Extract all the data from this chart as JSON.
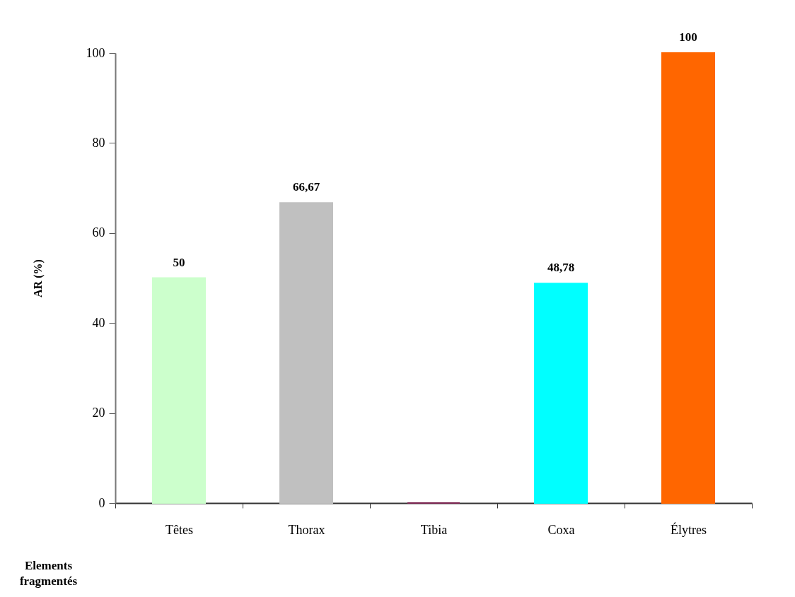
{
  "chart_data": {
    "type": "bar",
    "ylabel": "AR (%)",
    "xlabel": "Elements fragmentés",
    "categories": [
      "Têtes",
      "Thorax",
      "Tibia",
      "Coxa",
      "Élytres"
    ],
    "values": [
      50,
      66.67,
      0,
      48.78,
      100
    ],
    "colors": [
      "#ccffcc",
      "#c0c0c0",
      "#7b2450",
      "#00ffff",
      "#ff6600"
    ],
    "value_labels": [
      "50",
      "66,67",
      null,
      "48,78",
      "100"
    ],
    "ylim": [
      0,
      100
    ],
    "yticks": [
      0,
      20,
      40,
      60,
      80,
      100
    ],
    "grid": false
  }
}
